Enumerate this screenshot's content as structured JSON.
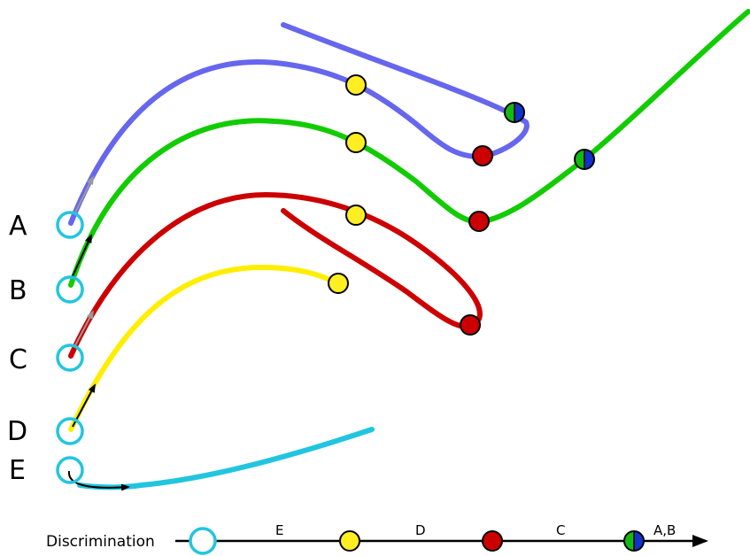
{
  "colors": {
    "A": "#6666ee",
    "B": "#11cc00",
    "C": "#cc0000",
    "D": "#ffee00",
    "E": "#22c5e0",
    "ring": "#22c5e0",
    "yellow_node": "#ffee22",
    "red_node": "#cc0000",
    "split_left": "#11bb11",
    "split_right": "#1133cc",
    "ink": "#000000"
  },
  "lineage_labels": {
    "A": "A",
    "B": "B",
    "C": "C",
    "D": "D",
    "E": "E"
  },
  "axis": {
    "title": "Discrimination",
    "segments": [
      "E",
      "D",
      "C",
      "A,B"
    ]
  }
}
